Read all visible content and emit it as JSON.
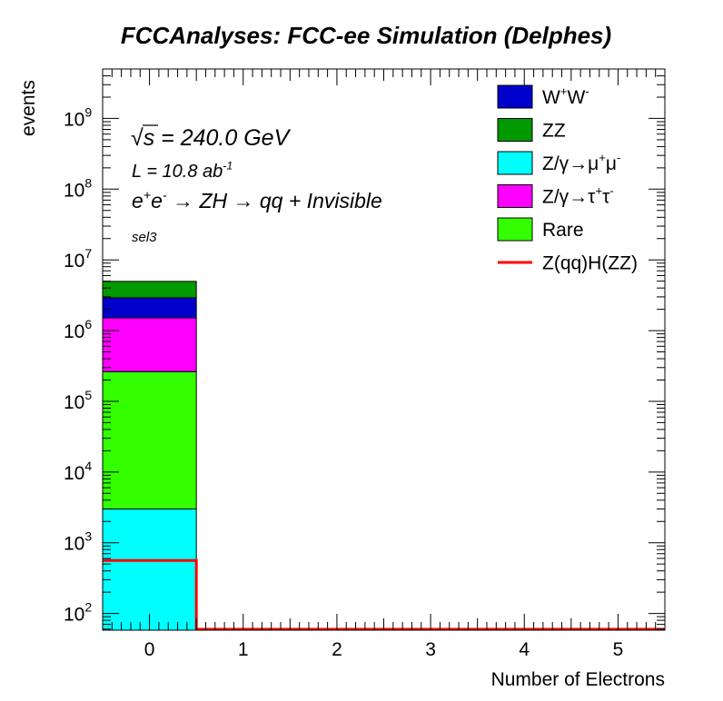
{
  "chart_data": {
    "type": "bar",
    "stacked": true,
    "title": "FCCAnalyses: FCC-ee Simulation (Delphes)",
    "xlabel": "Number of Electrons",
    "ylabel": "events",
    "x_ticks": [
      "0",
      "1",
      "2",
      "3",
      "4",
      "5"
    ],
    "xlim": [
      -0.5,
      5.5
    ],
    "yscale": "log",
    "ylim": [
      58,
      5000000000
    ],
    "y_ticks": [
      {
        "base": "10",
        "exp": "2",
        "value": 100
      },
      {
        "base": "10",
        "exp": "3",
        "value": 1000
      },
      {
        "base": "10",
        "exp": "4",
        "value": 10000
      },
      {
        "base": "10",
        "exp": "5",
        "value": 100000
      },
      {
        "base": "10",
        "exp": "6",
        "value": 1000000
      },
      {
        "base": "10",
        "exp": "7",
        "value": 10000000
      },
      {
        "base": "10",
        "exp": "8",
        "value": 100000000
      },
      {
        "base": "10",
        "exp": "9",
        "value": 1000000000
      }
    ],
    "bin": {
      "low": -0.5,
      "high": 0.5
    },
    "series": [
      {
        "key": "zmumu",
        "value": 3000,
        "color": "#00ffff"
      },
      {
        "key": "rare",
        "value": 260000,
        "color": "#33ff00"
      },
      {
        "key": "ztautau",
        "value": 1250000,
        "color": "#ff00ff"
      },
      {
        "key": "ww",
        "value": 1400000,
        "color": "#0000cc"
      },
      {
        "key": "zz",
        "value": 2050000,
        "color": "#009900"
      }
    ],
    "signal": {
      "value": 560,
      "color": "#ff0000"
    },
    "legend": {
      "position": "top-right",
      "entries": [
        {
          "key": "ww",
          "type": "box",
          "color": "#0000cc",
          "parts": [
            {
              "t": "W"
            },
            {
              "t": "+",
              "sup": true
            },
            {
              "t": "W"
            },
            {
              "t": "-",
              "sup": true
            }
          ]
        },
        {
          "key": "zz",
          "type": "box",
          "color": "#009900",
          "parts": [
            {
              "t": "ZZ"
            }
          ]
        },
        {
          "key": "zmumu",
          "type": "box",
          "color": "#00ffff",
          "parts": [
            {
              "t": "Z/γ→μ"
            },
            {
              "t": "+",
              "sup": true
            },
            {
              "t": "μ"
            },
            {
              "t": "-",
              "sup": true
            }
          ]
        },
        {
          "key": "ztautau",
          "type": "box",
          "color": "#ff00ff",
          "parts": [
            {
              "t": "Z/γ→τ"
            },
            {
              "t": "+",
              "sup": true
            },
            {
              "t": "τ"
            },
            {
              "t": "-",
              "sup": true
            }
          ]
        },
        {
          "key": "rare",
          "type": "box",
          "color": "#33ff00",
          "parts": [
            {
              "t": "Rare"
            }
          ]
        },
        {
          "key": "signal",
          "type": "line",
          "color": "#ff0000",
          "parts": [
            {
              "t": "Z(qq)H(ZZ)"
            }
          ]
        }
      ]
    },
    "annotations": {
      "energy": {
        "sqrt": "√",
        "s": "s",
        "rest": " = 240.0 GeV"
      },
      "lumi": {
        "text": "L = 10.8 ab",
        "sup": "-1"
      },
      "process": [
        {
          "t": "e"
        },
        {
          "t": "+",
          "sup": true
        },
        {
          "t": "e"
        },
        {
          "t": "-",
          "sup": true
        },
        {
          "t": "  → ZH  → qq + Invisible"
        }
      ],
      "selection": "sel3"
    }
  }
}
